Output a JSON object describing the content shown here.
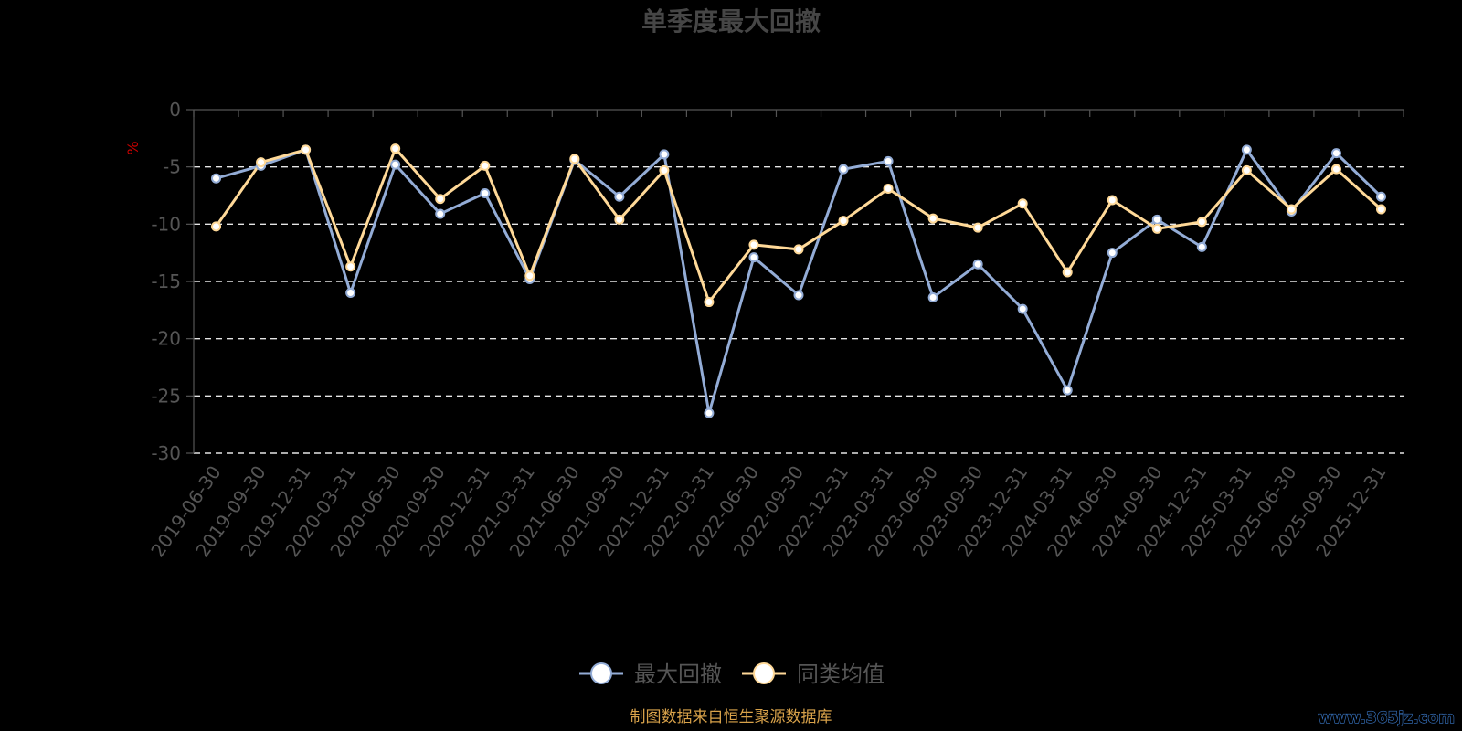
{
  "chart_data": {
    "type": "line",
    "title": "单季度最大回撤",
    "ylabel": "%",
    "ylim": [
      -30,
      0
    ],
    "yticks": [
      0,
      -5,
      -10,
      -15,
      -20,
      -25,
      -30
    ],
    "grid": true,
    "legend_position": "bottom-center",
    "categories": [
      "2019-06-30",
      "2019-09-30",
      "2019-12-31",
      "2020-03-31",
      "2020-06-30",
      "2020-09-30",
      "2020-12-31",
      "2021-03-31",
      "2021-06-30",
      "2021-09-30",
      "2021-12-31",
      "2022-03-31",
      "2022-06-30",
      "2022-09-30",
      "2022-12-31",
      "2023-03-31",
      "2023-06-30",
      "2023-09-30",
      "2023-12-31",
      "2024-03-31",
      "2024-06-30",
      "2024-09-30",
      "2024-12-31",
      "2025-03-31",
      "2025-06-30",
      "2025-09-30",
      "2025-12-31"
    ],
    "series": [
      {
        "name": "最大回撤",
        "color": "#93acd6",
        "values": [
          -6.0,
          -4.9,
          -3.5,
          -16.0,
          -4.8,
          -9.1,
          -7.3,
          -14.8,
          -4.4,
          -7.6,
          -3.9,
          -26.5,
          -12.9,
          -16.2,
          -5.2,
          -4.5,
          -16.4,
          -13.5,
          -17.4,
          -24.5,
          -12.5,
          -9.6,
          -12.0,
          -3.5,
          -8.9,
          -3.8,
          -7.6
        ]
      },
      {
        "name": "同类均值",
        "color": "#ffd998",
        "values": [
          -10.2,
          -4.6,
          -3.5,
          -13.7,
          -3.4,
          -7.8,
          -4.9,
          -14.5,
          -4.3,
          -9.6,
          -5.3,
          -16.8,
          -11.8,
          -12.2,
          -9.7,
          -6.9,
          -9.5,
          -10.3,
          -8.2,
          -14.2,
          -7.9,
          -10.4,
          -9.8,
          -5.3,
          -8.7,
          -5.2,
          -8.7
        ]
      }
    ]
  },
  "legend": {
    "items": [
      {
        "label": "最大回撤",
        "color": "#93acd6"
      },
      {
        "label": "同类均值",
        "color": "#ffd998"
      }
    ]
  },
  "footer": {
    "source": "制图数据来自恒生聚源数据库",
    "watermark": "www.365jz.com"
  }
}
